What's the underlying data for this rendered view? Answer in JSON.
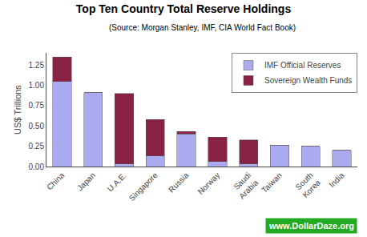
{
  "chart_data": {
    "type": "bar",
    "stacked": true,
    "title": "Top Ten Country Total Reserve Holdings",
    "subtitle": "(Source: Morgan Stanley, IMF, CIA World Fact Book)",
    "ylabel": "US$ Trillions",
    "categories": [
      "China",
      "Japan",
      "U.A.E.",
      "Singapore",
      "Russia",
      "Norway",
      "Saudi\nArabia",
      "Taiwan",
      "South\nKorea",
      "India"
    ],
    "series": [
      {
        "name": "IMF Official Reserves",
        "color": "#aaaaee",
        "values": [
          1.05,
          0.91,
          0.03,
          0.13,
          0.4,
          0.06,
          0.03,
          0.26,
          0.25,
          0.2
        ]
      },
      {
        "name": "Sovereign Wealth Funds",
        "color": "#882244",
        "values": [
          0.3,
          0.0,
          0.87,
          0.45,
          0.03,
          0.3,
          0.3,
          0.0,
          0.0,
          0.0
        ]
      }
    ],
    "ylim": [
      0,
      1.4
    ],
    "yticks": [
      {
        "value": 0,
        "label": "0.00"
      },
      0.25,
      {
        "value": 0.5,
        "label": "0.50"
      },
      0.75,
      {
        "value": 1,
        "label": "1.00"
      },
      1.25
    ],
    "grid": false,
    "legend": "upper right",
    "annotations": [
      {
        "text": "www.DollarDaze.org",
        "color": "#ffffff",
        "bgcolor": "#22aa22"
      }
    ]
  }
}
